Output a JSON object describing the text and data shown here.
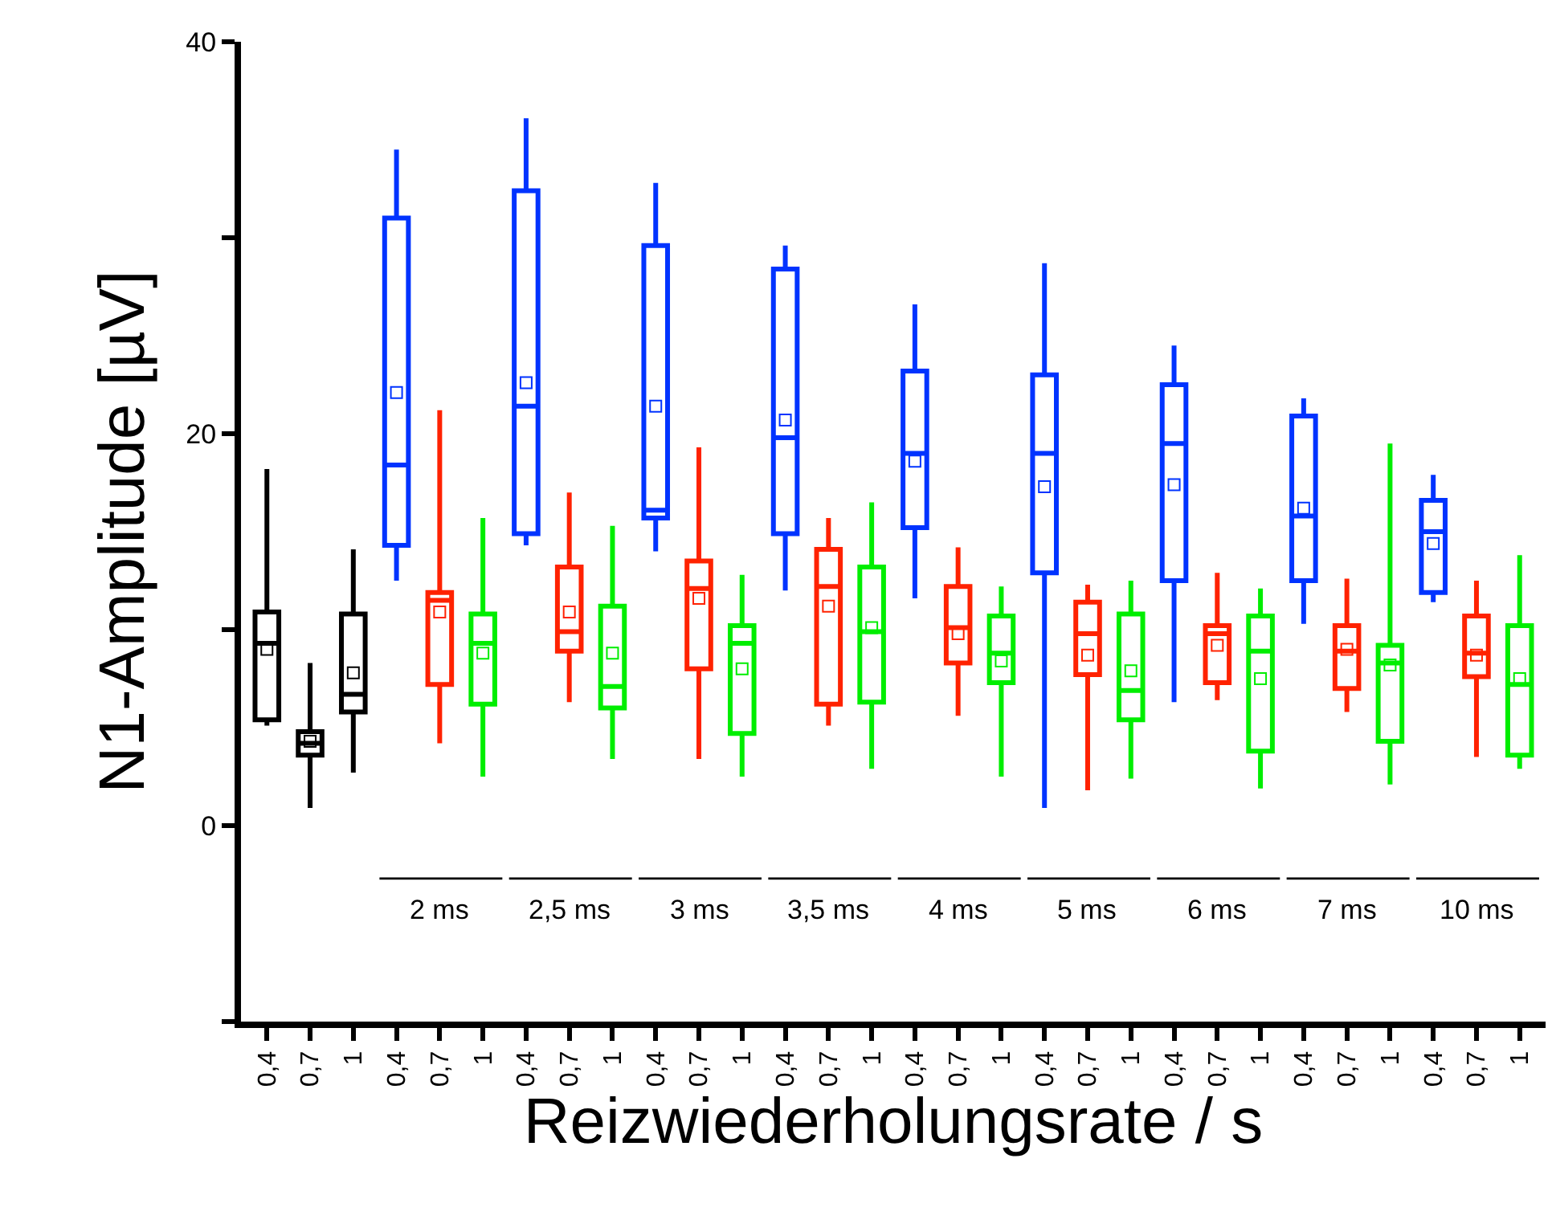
{
  "chart_data": {
    "type": "box",
    "xlabel": "Reizwiederholungsrate / s",
    "ylabel": "N1-Amplitude [µV]",
    "categories": [
      "0,4",
      "0,7",
      "1",
      "0,4",
      "0,7",
      "1",
      "0,4",
      "0,7",
      "1",
      "0,4",
      "0,7",
      "1",
      "0,4",
      "0,7",
      "1",
      "0,4",
      "0,7",
      "1",
      "0,4",
      "0,7",
      "1",
      "0,4",
      "0,7",
      "1",
      "0,4",
      "0,7",
      "1",
      "0,4",
      "0,7",
      "1"
    ],
    "colors": [
      "#000000",
      "#000000",
      "#000000",
      "#0033ff",
      "#ff2200",
      "#00ee00",
      "#0033ff",
      "#ff2200",
      "#00ee00",
      "#0033ff",
      "#ff2200",
      "#00ee00",
      "#0033ff",
      "#ff2200",
      "#00ee00",
      "#0033ff",
      "#ff2200",
      "#00ee00",
      "#0033ff",
      "#ff2200",
      "#00ee00",
      "#0033ff",
      "#ff2200",
      "#00ee00",
      "#0033ff",
      "#ff2200",
      "#00ee00",
      "#0033ff",
      "#ff2200",
      "#00ee00"
    ],
    "boxes": [
      {
        "low": 5.1,
        "q1": 5.4,
        "median": 9.3,
        "q3": 10.9,
        "high": 18.2,
        "mean": 9.0
      },
      {
        "low": 0.9,
        "q1": 3.6,
        "median": 4.2,
        "q3": 4.8,
        "high": 8.3,
        "mean": 4.3
      },
      {
        "low": 2.7,
        "q1": 5.8,
        "median": 6.7,
        "q3": 10.8,
        "high": 14.1,
        "mean": 7.8
      },
      {
        "low": 12.5,
        "q1": 14.3,
        "median": 18.4,
        "q3": 31.0,
        "high": 34.5,
        "mean": 22.1
      },
      {
        "low": 4.2,
        "q1": 7.2,
        "median": 11.5,
        "q3": 11.9,
        "high": 21.2,
        "mean": 10.9
      },
      {
        "low": 2.5,
        "q1": 6.2,
        "median": 9.3,
        "q3": 10.8,
        "high": 15.7,
        "mean": 8.8
      },
      {
        "low": 14.3,
        "q1": 14.9,
        "median": 21.4,
        "q3": 32.4,
        "high": 36.1,
        "mean": 22.6
      },
      {
        "low": 6.3,
        "q1": 8.9,
        "median": 9.9,
        "q3": 13.2,
        "high": 17.0,
        "mean": 10.9
      },
      {
        "low": 3.4,
        "q1": 6.0,
        "median": 7.1,
        "q3": 11.2,
        "high": 15.3,
        "mean": 8.8
      },
      {
        "low": 14.0,
        "q1": 15.7,
        "median": 16.1,
        "q3": 29.6,
        "high": 32.8,
        "mean": 21.4
      },
      {
        "low": 3.4,
        "q1": 8.0,
        "median": 12.1,
        "q3": 13.5,
        "high": 19.3,
        "mean": 11.6
      },
      {
        "low": 2.5,
        "q1": 4.7,
        "median": 9.3,
        "q3": 10.2,
        "high": 12.8,
        "mean": 8.0
      },
      {
        "low": 12.0,
        "q1": 14.9,
        "median": 19.8,
        "q3": 28.4,
        "high": 29.6,
        "mean": 20.7
      },
      {
        "low": 5.1,
        "q1": 6.2,
        "median": 12.2,
        "q3": 14.1,
        "high": 15.7,
        "mean": 11.2
      },
      {
        "low": 2.9,
        "q1": 6.3,
        "median": 9.9,
        "q3": 13.2,
        "high": 16.5,
        "mean": 10.1
      },
      {
        "low": 11.6,
        "q1": 15.2,
        "median": 19.0,
        "q3": 23.2,
        "high": 26.6,
        "mean": 18.6
      },
      {
        "low": 5.6,
        "q1": 8.3,
        "median": 10.1,
        "q3": 12.2,
        "high": 14.2,
        "mean": 9.8
      },
      {
        "low": 2.5,
        "q1": 7.3,
        "median": 8.8,
        "q3": 10.7,
        "high": 12.2,
        "mean": 8.4
      },
      {
        "low": 0.9,
        "q1": 12.9,
        "median": 19.0,
        "q3": 23.0,
        "high": 28.7,
        "mean": 17.3
      },
      {
        "low": 1.8,
        "q1": 7.7,
        "median": 9.8,
        "q3": 11.4,
        "high": 12.3,
        "mean": 8.7
      },
      {
        "low": 2.4,
        "q1": 5.4,
        "median": 6.9,
        "q3": 10.8,
        "high": 12.5,
        "mean": 7.9
      },
      {
        "low": 6.3,
        "q1": 12.5,
        "median": 19.5,
        "q3": 22.5,
        "high": 24.5,
        "mean": 17.4
      },
      {
        "low": 6.4,
        "q1": 7.3,
        "median": 9.8,
        "q3": 10.2,
        "high": 12.9,
        "mean": 9.2
      },
      {
        "low": 1.9,
        "q1": 3.8,
        "median": 8.9,
        "q3": 10.7,
        "high": 12.1,
        "mean": 7.5
      },
      {
        "low": 10.3,
        "q1": 12.5,
        "median": 15.8,
        "q3": 20.9,
        "high": 21.8,
        "mean": 16.2
      },
      {
        "low": 5.8,
        "q1": 7.0,
        "median": 8.9,
        "q3": 10.2,
        "high": 12.6,
        "mean": 9.0
      },
      {
        "low": 2.1,
        "q1": 4.3,
        "median": 8.3,
        "q3": 9.2,
        "high": 19.5,
        "mean": 8.2
      },
      {
        "low": 11.4,
        "q1": 11.9,
        "median": 15.0,
        "q3": 16.6,
        "high": 17.9,
        "mean": 14.4
      },
      {
        "low": 3.5,
        "q1": 7.6,
        "median": 8.8,
        "q3": 10.7,
        "high": 12.5,
        "mean": 8.7
      },
      {
        "low": 2.9,
        "q1": 3.6,
        "median": 7.2,
        "q3": 10.2,
        "high": 13.8,
        "mean": 7.5
      }
    ],
    "ylim": [
      -10,
      40
    ],
    "yticks": [
      {
        "value": -10,
        "label": null
      },
      0,
      {
        "value": 10,
        "label": null
      },
      20,
      {
        "value": 30,
        "label": null
      },
      40
    ],
    "annotations": [
      "2 ms",
      "2,5 ms",
      "3 ms",
      "3,5 ms",
      "4 ms",
      "5 ms",
      "6 ms",
      "7 ms",
      "10 ms"
    ],
    "marker": "square"
  }
}
